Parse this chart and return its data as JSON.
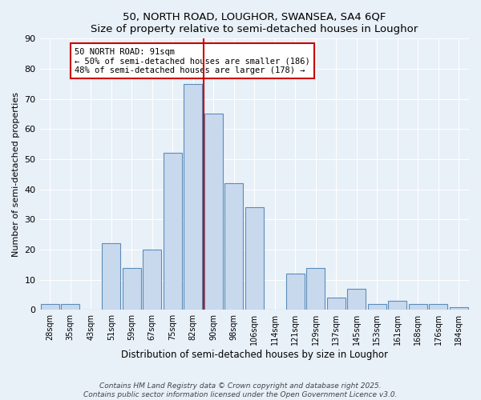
{
  "title": "50, NORTH ROAD, LOUGHOR, SWANSEA, SA4 6QF",
  "subtitle": "Size of property relative to semi-detached houses in Loughor",
  "xlabel": "Distribution of semi-detached houses by size in Loughor",
  "ylabel": "Number of semi-detached properties",
  "bar_labels": [
    "28sqm",
    "35sqm",
    "43sqm",
    "51sqm",
    "59sqm",
    "67sqm",
    "75sqm",
    "82sqm",
    "90sqm",
    "98sqm",
    "106sqm",
    "114sqm",
    "121sqm",
    "129sqm",
    "137sqm",
    "145sqm",
    "153sqm",
    "161sqm",
    "168sqm",
    "176sqm",
    "184sqm"
  ],
  "bar_values": [
    2,
    2,
    0,
    22,
    14,
    20,
    52,
    75,
    65,
    42,
    34,
    0,
    12,
    14,
    4,
    7,
    2,
    3,
    2,
    2,
    1
  ],
  "bar_color": "#c8d9ee",
  "bar_edge_color": "#5b8db8",
  "vline_color": "#cc0000",
  "annotation_title": "50 NORTH ROAD: 91sqm",
  "annotation_line1": "← 50% of semi-detached houses are smaller (186)",
  "annotation_line2": "48% of semi-detached houses are larger (178) →",
  "annotation_box_color": "#ffffff",
  "annotation_box_edge": "#cc0000",
  "ylim": [
    0,
    90
  ],
  "yticks": [
    0,
    10,
    20,
    30,
    40,
    50,
    60,
    70,
    80,
    90
  ],
  "bg_color": "#e8f0f8",
  "footer1": "Contains HM Land Registry data © Crown copyright and database right 2025.",
  "footer2": "Contains public sector information licensed under the Open Government Licence v3.0."
}
